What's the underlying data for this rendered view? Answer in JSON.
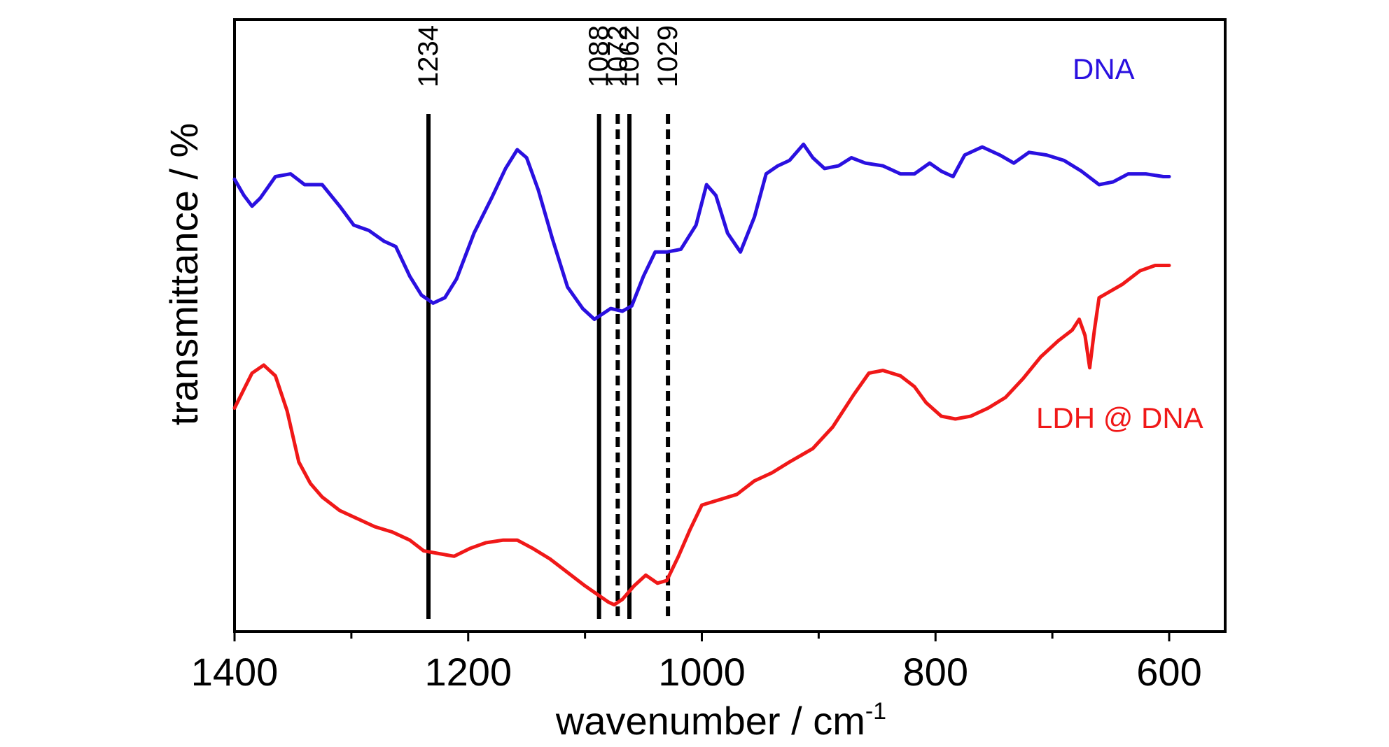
{
  "chart_data": {
    "type": "line",
    "title": "",
    "xlabel": "wavenumber / cm",
    "xlabel_superscript": "-1",
    "ylabel": "transmittance / %",
    "xlim": [
      1400,
      550
    ],
    "x_reversed": true,
    "x_ticks": [
      1400,
      1200,
      1000,
      800,
      600
    ],
    "x_minor_ticks": [
      1300,
      1100,
      900,
      700
    ],
    "y_ticks_shown": false,
    "grid": false,
    "legend": "inline labels (top-right and right)",
    "series": [
      {
        "name": "DNA",
        "color": "#2a10e0",
        "points": [
          [
            1400,
            81.0
          ],
          [
            1392,
            78.0
          ],
          [
            1385,
            76.0
          ],
          [
            1378,
            77.5
          ],
          [
            1365,
            81.5
          ],
          [
            1352,
            82.0
          ],
          [
            1340,
            80.0
          ],
          [
            1325,
            80.0
          ],
          [
            1310,
            76.0
          ],
          [
            1298,
            72.5
          ],
          [
            1285,
            71.5
          ],
          [
            1272,
            69.5
          ],
          [
            1262,
            68.5
          ],
          [
            1250,
            63.0
          ],
          [
            1240,
            59.5
          ],
          [
            1230,
            58.0
          ],
          [
            1220,
            59.0
          ],
          [
            1210,
            62.5
          ],
          [
            1195,
            71.0
          ],
          [
            1180,
            77.5
          ],
          [
            1168,
            83.0
          ],
          [
            1158,
            86.5
          ],
          [
            1150,
            85.0
          ],
          [
            1140,
            79.0
          ],
          [
            1128,
            70.0
          ],
          [
            1115,
            61.0
          ],
          [
            1102,
            57.0
          ],
          [
            1092,
            55.0
          ],
          [
            1085,
            56.0
          ],
          [
            1078,
            57.0
          ],
          [
            1068,
            56.5
          ],
          [
            1060,
            57.5
          ],
          [
            1050,
            63.0
          ],
          [
            1040,
            67.5
          ],
          [
            1030,
            67.5
          ],
          [
            1018,
            68.0
          ],
          [
            1005,
            72.5
          ],
          [
            996,
            80.0
          ],
          [
            988,
            78.0
          ],
          [
            978,
            71.0
          ],
          [
            967,
            67.5
          ],
          [
            955,
            74.0
          ],
          [
            945,
            82.0
          ],
          [
            935,
            83.5
          ],
          [
            925,
            84.5
          ],
          [
            913,
            87.5
          ],
          [
            905,
            85.0
          ],
          [
            895,
            83.0
          ],
          [
            883,
            83.5
          ],
          [
            872,
            85.0
          ],
          [
            860,
            84.0
          ],
          [
            845,
            83.5
          ],
          [
            830,
            82.0
          ],
          [
            818,
            82.0
          ],
          [
            805,
            84.0
          ],
          [
            795,
            82.5
          ],
          [
            785,
            81.5
          ],
          [
            775,
            85.5
          ],
          [
            760,
            87.0
          ],
          [
            745,
            85.5
          ],
          [
            733,
            84.0
          ],
          [
            720,
            86.0
          ],
          [
            705,
            85.5
          ],
          [
            690,
            84.5
          ],
          [
            675,
            82.5
          ],
          [
            660,
            80.0
          ],
          [
            648,
            80.5
          ],
          [
            635,
            82.0
          ],
          [
            620,
            82.0
          ],
          [
            605,
            81.5
          ],
          [
            600,
            81.5
          ]
        ]
      },
      {
        "name": "LDH @ DNA",
        "color": "#f01818",
        "points": [
          [
            1400,
            38.5
          ],
          [
            1392,
            42.0
          ],
          [
            1385,
            45.0
          ],
          [
            1375,
            46.5
          ],
          [
            1365,
            44.5
          ],
          [
            1355,
            38.0
          ],
          [
            1345,
            28.5
          ],
          [
            1335,
            24.5
          ],
          [
            1325,
            22.0
          ],
          [
            1310,
            19.5
          ],
          [
            1295,
            18.0
          ],
          [
            1280,
            16.5
          ],
          [
            1265,
            15.5
          ],
          [
            1250,
            14.0
          ],
          [
            1238,
            12.0
          ],
          [
            1225,
            11.5
          ],
          [
            1212,
            11.0
          ],
          [
            1198,
            12.5
          ],
          [
            1185,
            13.5
          ],
          [
            1170,
            14.0
          ],
          [
            1158,
            14.0
          ],
          [
            1145,
            12.5
          ],
          [
            1130,
            10.5
          ],
          [
            1115,
            8.0
          ],
          [
            1100,
            5.5
          ],
          [
            1090,
            4.0
          ],
          [
            1080,
            2.5
          ],
          [
            1075,
            2.0
          ],
          [
            1068,
            3.0
          ],
          [
            1058,
            5.5
          ],
          [
            1048,
            7.5
          ],
          [
            1038,
            6.0
          ],
          [
            1030,
            6.5
          ],
          [
            1020,
            11.0
          ],
          [
            1010,
            16.0
          ],
          [
            1000,
            20.5
          ],
          [
            985,
            21.5
          ],
          [
            970,
            22.5
          ],
          [
            955,
            25.0
          ],
          [
            940,
            26.5
          ],
          [
            925,
            28.5
          ],
          [
            905,
            31.0
          ],
          [
            888,
            35.0
          ],
          [
            870,
            41.0
          ],
          [
            857,
            45.0
          ],
          [
            845,
            45.5
          ],
          [
            830,
            44.5
          ],
          [
            818,
            42.5
          ],
          [
            808,
            39.5
          ],
          [
            795,
            37.0
          ],
          [
            783,
            36.5
          ],
          [
            770,
            37.0
          ],
          [
            755,
            38.5
          ],
          [
            740,
            40.5
          ],
          [
            725,
            44.0
          ],
          [
            710,
            48.0
          ],
          [
            695,
            51.0
          ],
          [
            683,
            53.0
          ],
          [
            677,
            55.0
          ],
          [
            672,
            52.0
          ],
          [
            668,
            46.0
          ],
          [
            664,
            53.0
          ],
          [
            660,
            59.0
          ],
          [
            652,
            60.0
          ],
          [
            640,
            61.5
          ],
          [
            625,
            64.0
          ],
          [
            612,
            65.0
          ],
          [
            600,
            65.0
          ]
        ]
      }
    ],
    "markers": [
      {
        "label": "1234",
        "x": 1234,
        "style": "solid"
      },
      {
        "label": "1088",
        "x": 1088,
        "style": "solid"
      },
      {
        "label": "1072",
        "x": 1072,
        "style": "dashed"
      },
      {
        "label": "1062",
        "x": 1062,
        "style": "solid"
      },
      {
        "label": "1029",
        "x": 1029,
        "style": "dashed"
      }
    ]
  }
}
